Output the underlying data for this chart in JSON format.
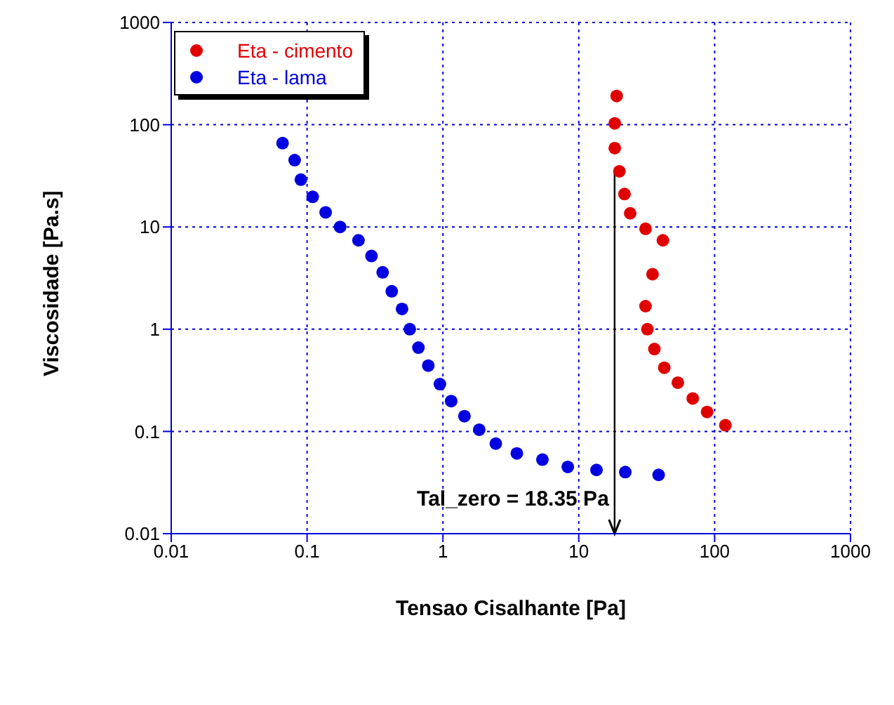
{
  "chart_data": {
    "type": "scatter",
    "xlabel": "Tensao Cisalhante [Pa]",
    "ylabel": "Viscosidade [Pa.s]",
    "log": "xy",
    "grid": true,
    "legend": "top left",
    "marker": "circle",
    "xlim": [
      0.01,
      1000
    ],
    "ylim": [
      0.01,
      1000
    ],
    "xticks": [
      0.01,
      0.1,
      1,
      10,
      100,
      1000
    ],
    "yticks": [
      0.01,
      0.1,
      1,
      10,
      100,
      1000
    ],
    "annotations": [
      {
        "text": "Tal_zero = 18.35 Pa",
        "x": 18.35,
        "y": 35
      }
    ],
    "series": [
      {
        "name": "Eta - cimento",
        "color": "#e00000",
        "x": [
          19,
          18.4,
          18.4,
          19.9,
          21.7,
          23.9,
          31,
          41.6,
          34.9,
          31,
          32,
          36,
          42.6,
          53.6,
          69,
          88,
          120
        ],
        "values": [
          191,
          103,
          59,
          35,
          21,
          13.6,
          9.6,
          7.4,
          3.45,
          1.68,
          1,
          0.64,
          0.42,
          0.3,
          0.21,
          0.155,
          0.115
        ]
      },
      {
        "name": "Eta - lama",
        "color": "#0000e0",
        "x": [
          0.066,
          0.081,
          0.09,
          0.11,
          0.137,
          0.175,
          0.239,
          0.298,
          0.36,
          0.42,
          0.5,
          0.57,
          0.66,
          0.78,
          0.95,
          1.15,
          1.44,
          1.85,
          2.45,
          3.5,
          5.4,
          8.3,
          13.5,
          22,
          38.7
        ],
        "values": [
          66,
          45,
          29,
          19.7,
          13.9,
          10,
          7.4,
          5.2,
          3.6,
          2.35,
          1.58,
          1,
          0.66,
          0.44,
          0.29,
          0.198,
          0.141,
          0.104,
          0.076,
          0.061,
          0.053,
          0.045,
          0.042,
          0.04,
          0.0376
        ]
      }
    ]
  }
}
